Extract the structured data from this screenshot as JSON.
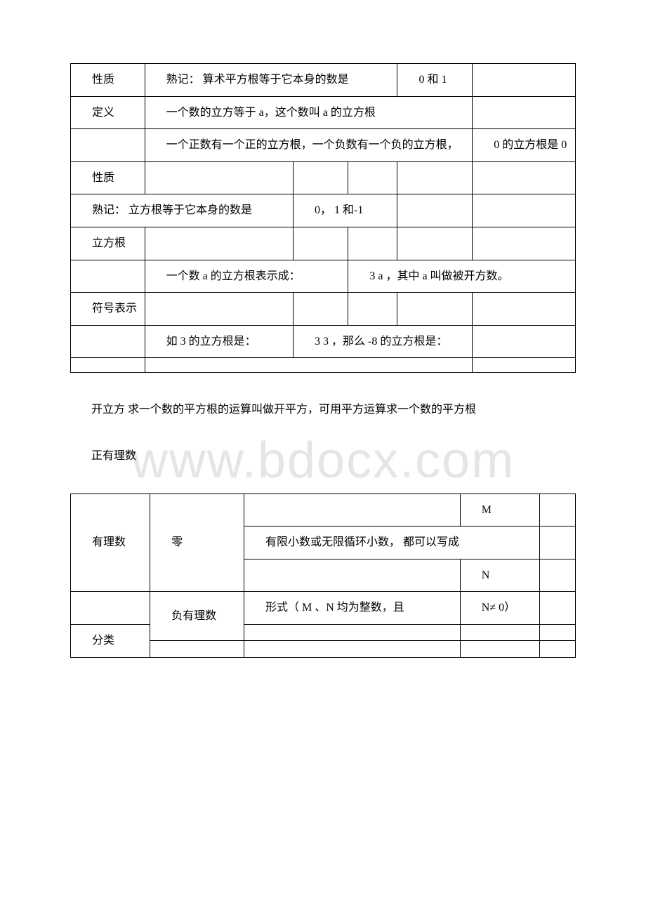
{
  "watermark": "www.bdocx.com",
  "table1": {
    "r1c1": "性质",
    "r1c2": "熟记： 算术平方根等于它本身的数是",
    "r1c3": "0 和 1",
    "r2c1": "定义",
    "r2c2": "一个数的立方等于 a，这个数叫 a 的立方根",
    "r3c2": "一个正数有一个正的立方根，一个负数有一个负的立方根，",
    "r3c3": "0 的立方根是 0",
    "r4c1": "性质",
    "r5c1": "熟记： 立方根等于它本身的数是",
    "r5c2": "0， 1 和-1",
    "r6c1": "立方根",
    "r7c2": "一个数 a 的立方根表示成：",
    "r7c3": "3 a ，其中 a 叫做被开方数。",
    "r8c1": "符号表示",
    "r9c2": "如 3 的立方根是：",
    "r9c3": "3 3 ，那么 -8 的立方根是："
  },
  "para1": "开立方 求一个数的平方根的运算叫做开平方，可用平方运算求一个数的平方根",
  "para2": "正有理数",
  "table2": {
    "r1c4": "M",
    "r2c1": "有理数",
    "r2c2": "零",
    "r2c3": "有限小数或无限循环小数， 都可以写成",
    "r3c4": "N",
    "r4c2": "负有理数",
    "r4c3": "形式（ M 、N 均为整数，且",
    "r4c4": "N≠ 0）",
    "r5c1": "分类"
  },
  "styles": {
    "background_color": "#ffffff",
    "border_color": "#000000",
    "text_color": "#000000",
    "watermark_color": "#e5e5e5",
    "font_family": "SimSun",
    "base_fontsize": 16
  }
}
